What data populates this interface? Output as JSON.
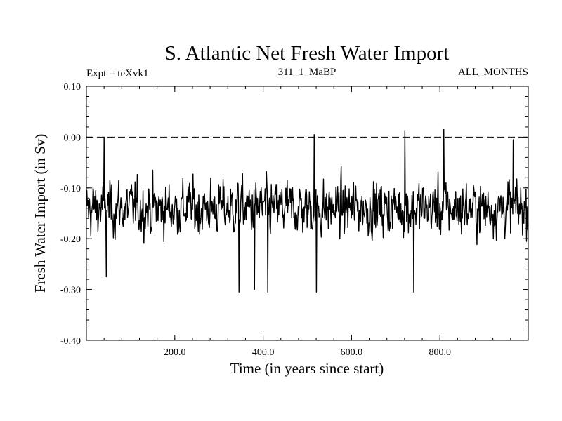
{
  "chart_data": {
    "type": "line",
    "title": "S. Atlantic Net Fresh Water Import",
    "subtitle_left": "Expt = teXvk1",
    "subtitle_center": "311_1_MaBP",
    "subtitle_right": "ALL_MONTHS",
    "xlabel": "Time (in years since start)",
    "ylabel": "Fresh Water Import (in Sv)",
    "xlim": [
      0,
      1000
    ],
    "ylim": [
      -0.4,
      0.1
    ],
    "x_ticks": [
      200,
      400,
      600,
      800
    ],
    "x_tick_labels": [
      "200.0",
      "400.0",
      "600.0",
      "800.0"
    ],
    "y_ticks": [
      0.1,
      0.0,
      -0.1,
      -0.2,
      -0.3,
      -0.4
    ],
    "y_tick_labels": [
      "0.10",
      "0.00",
      "-0.10",
      "-0.20",
      "-0.30",
      "-0.40"
    ],
    "reference_line": {
      "y": 0.0,
      "style": "dashed"
    },
    "series": [
      {
        "name": "Net Fresh Water Import",
        "summary": {
          "n_points": 1000,
          "mean": -0.14,
          "typical_range": [
            -0.22,
            -0.06
          ],
          "min": -0.31,
          "max": 0.015
        },
        "notable_points": [
          {
            "x": 40,
            "y": 0.0
          },
          {
            "x": 45,
            "y": -0.275
          },
          {
            "x": 345,
            "y": -0.305
          },
          {
            "x": 380,
            "y": -0.3
          },
          {
            "x": 410,
            "y": -0.305
          },
          {
            "x": 515,
            "y": 0.005
          },
          {
            "x": 520,
            "y": -0.305
          },
          {
            "x": 720,
            "y": 0.013
          },
          {
            "x": 740,
            "y": -0.305
          },
          {
            "x": 808,
            "y": 0.015
          },
          {
            "x": 965,
            "y": -0.005
          }
        ]
      }
    ]
  }
}
